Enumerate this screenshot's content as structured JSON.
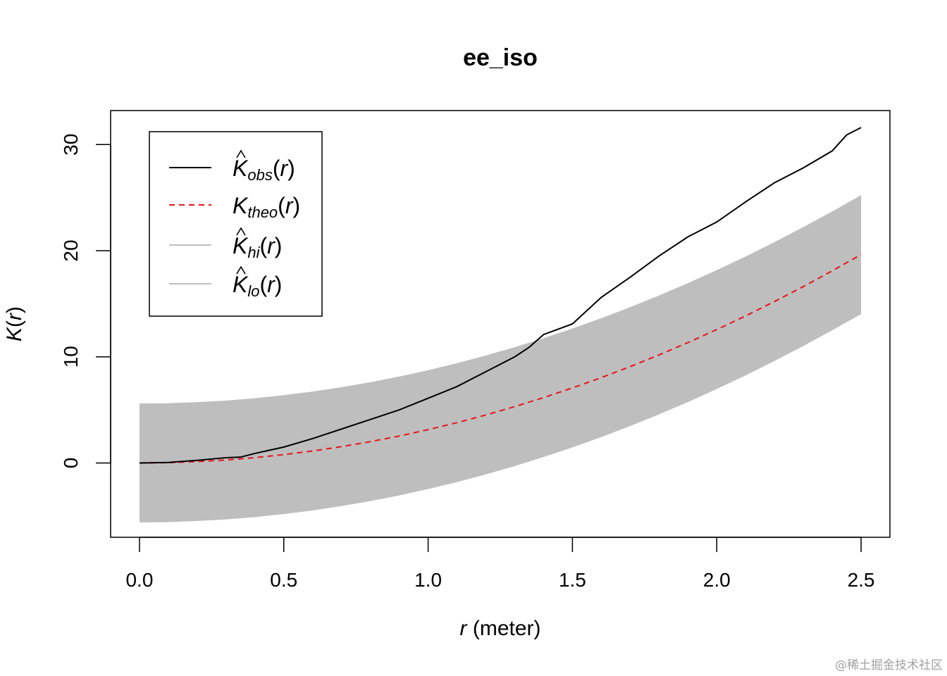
{
  "chart_data": {
    "type": "line",
    "title": "ee_iso",
    "xlabel": {
      "var": "r",
      "unit": " (meter)"
    },
    "ylabel": {
      "fn": "K",
      "var": "r"
    },
    "xlim": [
      -0.1,
      2.6
    ],
    "ylim": [
      -7,
      33.2
    ],
    "x_ticks": [
      0.0,
      0.5,
      1.0,
      1.5,
      2.0,
      2.5
    ],
    "x_tick_labels": [
      "0.0",
      "0.5",
      "1.0",
      "1.5",
      "2.0",
      "2.5"
    ],
    "y_ticks": [
      0,
      10,
      20,
      30
    ],
    "y_tick_labels": [
      "0",
      "10",
      "20",
      "30"
    ],
    "legend": {
      "position": "top-left",
      "entries": [
        {
          "key": "obs",
          "sym": "K",
          "hat": true,
          "sub": "obs",
          "arg": "r",
          "color": "#000000",
          "style": "solid"
        },
        {
          "key": "theo",
          "sym": "K",
          "hat": false,
          "sub": "theo",
          "arg": "r",
          "color": "#e8141a",
          "style": "dashed"
        },
        {
          "key": "hi",
          "sym": "K",
          "hat": true,
          "sub": "hi",
          "arg": "r",
          "color": "#bebebe",
          "style": "solid"
        },
        {
          "key": "lo",
          "sym": "K",
          "hat": true,
          "sub": "lo",
          "arg": "r",
          "color": "#bebebe",
          "style": "solid"
        }
      ]
    },
    "series": [
      {
        "name": "obs",
        "color": "#000000",
        "style": "solid",
        "x": [
          0.0,
          0.1,
          0.2,
          0.3,
          0.35,
          0.4,
          0.5,
          0.6,
          0.7,
          0.8,
          0.9,
          1.0,
          1.1,
          1.2,
          1.3,
          1.35,
          1.4,
          1.5,
          1.6,
          1.7,
          1.8,
          1.9,
          2.0,
          2.1,
          2.2,
          2.3,
          2.4,
          2.45,
          2.5
        ],
        "values": [
          0.0,
          0.05,
          0.25,
          0.5,
          0.55,
          0.9,
          1.5,
          2.3,
          3.2,
          4.1,
          5.0,
          6.1,
          7.2,
          8.6,
          10.0,
          10.9,
          12.1,
          13.1,
          15.6,
          17.5,
          19.5,
          21.3,
          22.7,
          24.6,
          26.4,
          27.8,
          29.4,
          30.9,
          31.6
        ]
      },
      {
        "name": "theo",
        "color": "#e8141a",
        "style": "dashed",
        "x": [
          0.0,
          0.1,
          0.2,
          0.3,
          0.4,
          0.5,
          0.6,
          0.7,
          0.8,
          0.9,
          1.0,
          1.1,
          1.2,
          1.3,
          1.4,
          1.5,
          1.6,
          1.7,
          1.8,
          1.9,
          2.0,
          2.1,
          2.2,
          2.3,
          2.4,
          2.5
        ],
        "values": [
          0.0,
          0.03,
          0.13,
          0.28,
          0.5,
          0.79,
          1.13,
          1.54,
          2.01,
          2.54,
          3.14,
          3.8,
          4.52,
          5.31,
          6.16,
          7.07,
          8.04,
          9.08,
          10.18,
          11.34,
          12.57,
          13.85,
          15.21,
          16.62,
          18.1,
          19.63
        ]
      },
      {
        "name": "hi",
        "color": "#bebebe",
        "style": "band-upper",
        "x": [
          0.0,
          0.1,
          0.2,
          0.3,
          0.4,
          0.5,
          0.6,
          0.7,
          0.8,
          0.9,
          1.0,
          1.1,
          1.2,
          1.3,
          1.4,
          1.5,
          1.6,
          1.7,
          1.8,
          1.9,
          2.0,
          2.1,
          2.2,
          2.3,
          2.4,
          2.5
        ],
        "values": [
          5.6,
          5.63,
          5.73,
          5.88,
          6.1,
          6.39,
          6.73,
          7.14,
          7.61,
          8.14,
          8.74,
          9.4,
          10.12,
          10.91,
          11.76,
          12.67,
          13.64,
          14.68,
          15.78,
          16.94,
          18.17,
          19.45,
          20.81,
          22.22,
          23.7,
          25.23
        ]
      },
      {
        "name": "lo",
        "color": "#bebebe",
        "style": "band-lower",
        "x": [
          0.0,
          0.1,
          0.2,
          0.3,
          0.4,
          0.5,
          0.6,
          0.7,
          0.8,
          0.9,
          1.0,
          1.1,
          1.2,
          1.3,
          1.4,
          1.5,
          1.6,
          1.7,
          1.8,
          1.9,
          2.0,
          2.1,
          2.2,
          2.3,
          2.4,
          2.5
        ],
        "values": [
          -5.6,
          -5.57,
          -5.47,
          -5.32,
          -5.1,
          -4.81,
          -4.47,
          -4.06,
          -3.59,
          -3.06,
          -2.46,
          -1.8,
          -1.08,
          -0.29,
          0.56,
          1.47,
          2.44,
          3.48,
          4.58,
          5.74,
          6.97,
          8.25,
          9.61,
          11.02,
          12.5,
          14.03
        ]
      }
    ]
  },
  "watermark": "@稀土掘金技术社区"
}
